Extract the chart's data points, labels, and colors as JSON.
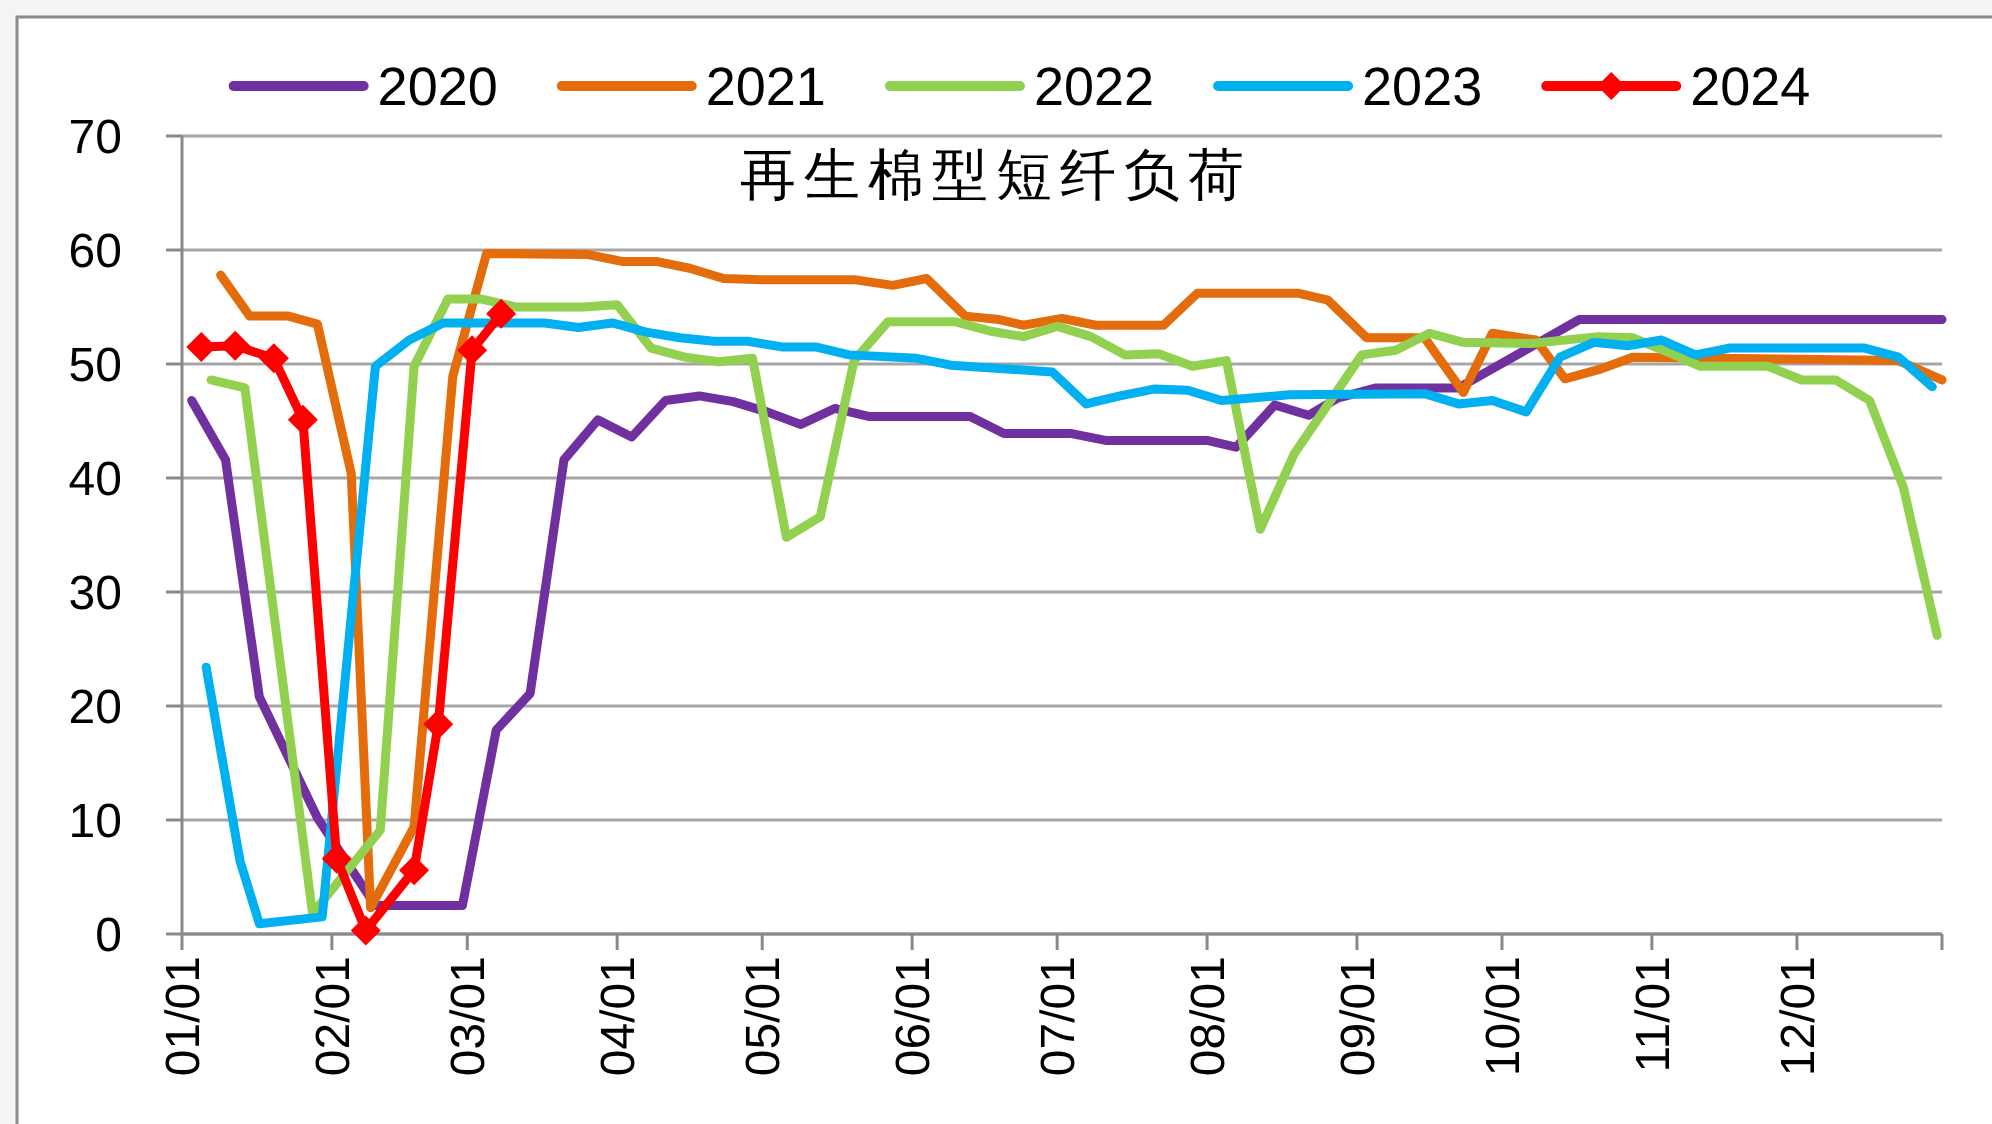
{
  "chart_data": {
    "type": "line",
    "title": "再生棉型短纤负荷",
    "xlim": [
      "--01-01",
      "--12-31"
    ],
    "xticks": [
      {
        "value": "--01-01",
        "label": "01/01"
      },
      {
        "value": "--02-01",
        "label": "02/01"
      },
      {
        "value": "--03-01",
        "label": "03/01"
      },
      {
        "value": "--04-01",
        "label": "04/01"
      },
      {
        "value": "--05-01",
        "label": "05/01"
      },
      {
        "value": "--06-01",
        "label": "06/01"
      },
      {
        "value": "--07-01",
        "label": "07/01"
      },
      {
        "value": "--08-01",
        "label": "08/01"
      },
      {
        "value": "--09-01",
        "label": "09/01"
      },
      {
        "value": "--10-01",
        "label": "10/01"
      },
      {
        "value": "--11-01",
        "label": "11/01"
      },
      {
        "value": "--12-01",
        "label": "12/01"
      },
      {
        "value": "--12-31",
        "label": null
      }
    ],
    "ylim": [
      0,
      70
    ],
    "yticks": [
      0,
      10,
      20,
      30,
      40,
      50,
      60,
      70
    ],
    "grid": "y",
    "legend": "top",
    "series": [
      {
        "name": "2020",
        "color": "#7030a0",
        "x": [
          "--01-03",
          "--01-10",
          "--01-17",
          "--01-29",
          "--02-10",
          "--02-28",
          "--03-07",
          "--03-14",
          "--03-21",
          "--03-28",
          "--04-04",
          "--04-11",
          "--04-18",
          "--04-25",
          "--05-02",
          "--05-09",
          "--05-16",
          "--05-23",
          "--06-13",
          "--06-20",
          "--07-04",
          "--07-11",
          "--08-01",
          "--08-07",
          "--08-15",
          "--08-22",
          "--08-28",
          "--09-05",
          "--09-22",
          "--10-17",
          "--12-31"
        ],
        "values": [
          46.8,
          41.6,
          20.8,
          10.2,
          2.5,
          2.5,
          17.9,
          21.1,
          41.6,
          45.1,
          43.6,
          46.8,
          47.2,
          46.7,
          45.8,
          44.7,
          46.1,
          45.4,
          45.4,
          43.9,
          43.9,
          43.3,
          43.3,
          42.7,
          46.4,
          45.5,
          47.0,
          47.9,
          47.9,
          53.9,
          53.9
        ]
      },
      {
        "name": "2021",
        "color": "#e46c0a",
        "x": [
          "--01-09",
          "--01-15",
          "--01-23",
          "--01-29",
          "--02-05",
          "--02-09",
          "--02-18",
          "--02-26",
          "--03-05",
          "--03-26",
          "--04-02",
          "--04-09",
          "--04-16",
          "--04-23",
          "--05-01",
          "--05-20",
          "--05-28",
          "--06-04",
          "--06-12",
          "--06-19",
          "--06-24",
          "--07-02",
          "--07-09",
          "--07-23",
          "--07-30",
          "--08-20",
          "--08-26",
          "--09-03",
          "--09-15",
          "--09-23",
          "--09-29",
          "--10-08",
          "--10-14",
          "--10-21",
          "--10-28",
          "--12-22",
          "--12-31"
        ],
        "values": [
          57.8,
          54.2,
          54.2,
          53.5,
          40.4,
          2.3,
          9.4,
          48.9,
          59.7,
          59.6,
          59.0,
          59.0,
          58.4,
          57.5,
          57.4,
          57.4,
          56.9,
          57.5,
          54.2,
          53.9,
          53.4,
          54.0,
          53.4,
          53.4,
          56.2,
          56.2,
          55.6,
          52.3,
          52.3,
          47.5,
          52.7,
          52.1,
          48.7,
          49.5,
          50.6,
          50.3,
          48.6
        ]
      },
      {
        "name": "2022",
        "color": "#92d050",
        "x": [
          "--01-07",
          "--01-14",
          "--01-28",
          "--02-11",
          "--02-18",
          "--02-25",
          "--03-04",
          "--03-11",
          "--03-25",
          "--04-01",
          "--04-08",
          "--04-15",
          "--04-22",
          "--04-29",
          "--05-06",
          "--05-13",
          "--05-20",
          "--05-27",
          "--06-10",
          "--06-17",
          "--06-24",
          "--07-01",
          "--07-08",
          "--07-15",
          "--07-22",
          "--07-29",
          "--08-05",
          "--08-12",
          "--08-19",
          "--09-02",
          "--09-09",
          "--09-16",
          "--09-23",
          "--10-07",
          "--10-21",
          "--10-28",
          "--11-04",
          "--11-11",
          "--11-25",
          "--12-02",
          "--12-09",
          "--12-16",
          "--12-23",
          "--12-30"
        ],
        "values": [
          48.6,
          47.9,
          1.8,
          9.1,
          49.8,
          55.7,
          55.7,
          55.0,
          55.0,
          55.2,
          51.4,
          50.6,
          50.2,
          50.5,
          34.8,
          36.6,
          50.3,
          53.7,
          53.7,
          52.9,
          52.4,
          53.3,
          52.4,
          50.8,
          50.9,
          49.8,
          50.3,
          35.5,
          42.1,
          50.8,
          51.2,
          52.7,
          51.9,
          51.8,
          52.4,
          52.3,
          51.1,
          49.8,
          49.8,
          48.6,
          48.6,
          46.8,
          39.2,
          26.2
        ]
      },
      {
        "name": "2023",
        "color": "#00b0f0",
        "x": [
          "--01-06",
          "--01-13",
          "--01-17",
          "--01-30",
          "--02-10",
          "--02-17",
          "--02-24",
          "--03-17",
          "--03-24",
          "--03-31",
          "--04-07",
          "--04-14",
          "--04-21",
          "--04-28",
          "--05-05",
          "--05-12",
          "--05-19",
          "--06-02",
          "--06-09",
          "--06-30",
          "--07-07",
          "--07-14",
          "--07-21",
          "--07-28",
          "--08-04",
          "--08-18",
          "--09-15",
          "--09-22",
          "--09-29",
          "--10-06",
          "--10-13",
          "--10-20",
          "--10-27",
          "--11-03",
          "--11-10",
          "--11-17",
          "--12-15",
          "--12-22",
          "--12-29"
        ],
        "values": [
          23.4,
          6.4,
          0.9,
          1.5,
          49.8,
          52.1,
          53.6,
          53.6,
          53.2,
          53.6,
          52.8,
          52.3,
          52.0,
          52.0,
          51.5,
          51.5,
          50.8,
          50.5,
          49.9,
          49.3,
          46.5,
          47.2,
          47.8,
          47.7,
          46.8,
          47.3,
          47.4,
          46.5,
          46.8,
          45.8,
          50.6,
          51.9,
          51.6,
          52.1,
          50.8,
          51.4,
          51.4,
          50.6,
          48.0
        ]
      },
      {
        "name": "2024",
        "color": "#ff0000",
        "marker": "diamond",
        "x": [
          "--01-05",
          "--01-12",
          "--01-20",
          "--01-26",
          "--02-02",
          "--02-08",
          "--02-18",
          "--02-23",
          "--03-02",
          "--03-08"
        ],
        "values": [
          51.5,
          51.6,
          50.5,
          45.1,
          6.6,
          0.3,
          5.6,
          18.4,
          51.2,
          54.4
        ]
      }
    ]
  }
}
